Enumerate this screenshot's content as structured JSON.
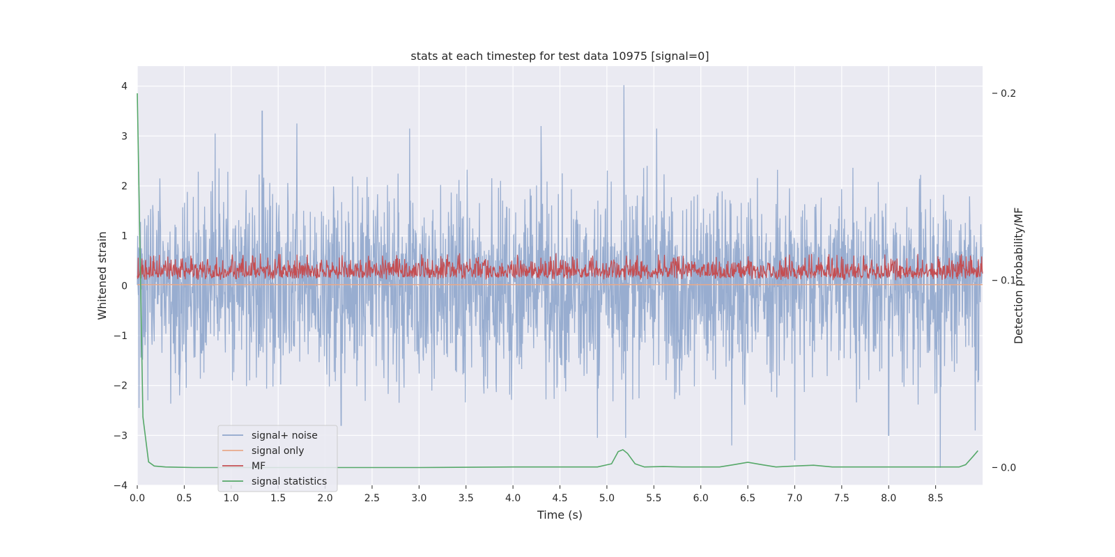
{
  "chart_data": {
    "type": "line",
    "title": "stats at each timestep for test data 10975 [signal=0]",
    "xlabel": "Time (s)",
    "ylabel": "Whitened strain",
    "y2label": "Detection probability/MF",
    "xlim": [
      0.0,
      9.0
    ],
    "ylim": [
      -4.0,
      4.4
    ],
    "y2lim": [
      -0.0095,
      0.2145
    ],
    "x_ticks": [
      0.0,
      0.5,
      1.0,
      1.5,
      2.0,
      2.5,
      3.0,
      3.5,
      4.0,
      4.5,
      5.0,
      5.5,
      6.0,
      6.5,
      7.0,
      7.5,
      8.0,
      8.5
    ],
    "x_tick_labels": [
      "0.0",
      "0.5",
      "1.0",
      "1.5",
      "2.0",
      "2.5",
      "3.0",
      "3.5",
      "4.0",
      "4.5",
      "5.0",
      "5.5",
      "6.0",
      "6.5",
      "7.0",
      "7.5",
      "8.0",
      "8.5"
    ],
    "y_ticks": [
      -4,
      -3,
      -2,
      -1,
      0,
      1,
      2,
      3,
      4
    ],
    "y_tick_labels": [
      "−4",
      "−3",
      "−2",
      "−1",
      "0",
      "1",
      "2",
      "3",
      "4"
    ],
    "y2_ticks": [
      0.0,
      0.1,
      0.2
    ],
    "y2_tick_labels": [
      "0.0",
      "0.1",
      "0.2"
    ],
    "grid": true,
    "legend_position": "lower-left",
    "series": [
      {
        "name": "signal+ noise",
        "axis": "left",
        "color": "#8fa6cc",
        "description": "dense noisy trace, typically within about -2.3 to 2.3 with spikes",
        "spikes": [
          {
            "x": 0.02,
            "y": -2.45
          },
          {
            "x": 0.83,
            "y": 3.05
          },
          {
            "x": 1.33,
            "y": 3.5
          },
          {
            "x": 1.7,
            "y": 3.25
          },
          {
            "x": 2.17,
            "y": -2.8
          },
          {
            "x": 2.9,
            "y": 3.15
          },
          {
            "x": 4.3,
            "y": 3.2
          },
          {
            "x": 4.9,
            "y": -3.05
          },
          {
            "x": 5.18,
            "y": 4.02
          },
          {
            "x": 5.2,
            "y": -3.05
          },
          {
            "x": 5.53,
            "y": 3.15
          },
          {
            "x": 6.33,
            "y": -3.2
          },
          {
            "x": 7.0,
            "y": -3.5
          },
          {
            "x": 8.0,
            "y": -3.0
          },
          {
            "x": 8.55,
            "y": -3.65
          },
          {
            "x": 8.92,
            "y": -2.9
          }
        ]
      },
      {
        "name": "signal only",
        "axis": "left",
        "color": "#e8a98a",
        "x": [
          0.0,
          9.0
        ],
        "values": [
          0.02,
          0.02
        ]
      },
      {
        "name": "MF",
        "axis": "right",
        "color": "#c44e52",
        "description": "noisy matched-filter trace, mostly between 0.1 and 0.115 on right axis"
      },
      {
        "name": "signal statistics",
        "axis": "right",
        "color": "#55a868",
        "x": [
          0.0,
          0.06,
          0.12,
          0.18,
          0.3,
          0.6,
          1.0,
          2.0,
          3.0,
          4.0,
          4.9,
          5.05,
          5.12,
          5.17,
          5.22,
          5.3,
          5.4,
          5.6,
          5.8,
          6.2,
          6.35,
          6.5,
          6.65,
          6.8,
          7.0,
          7.2,
          7.4,
          7.6,
          8.0,
          8.4,
          8.75,
          8.82,
          8.9,
          8.95
        ],
        "values": [
          0.2,
          0.027,
          0.003,
          0.0008,
          0.0003,
          0.0,
          0.0,
          0.0,
          0.0,
          0.0003,
          0.0003,
          0.002,
          0.0085,
          0.0095,
          0.0075,
          0.002,
          0.0003,
          0.0005,
          0.0003,
          0.0003,
          0.0015,
          0.0028,
          0.0015,
          0.0003,
          0.0008,
          0.0012,
          0.0003,
          0.0003,
          0.0003,
          0.0003,
          0.0003,
          0.0015,
          0.006,
          0.009
        ]
      }
    ]
  }
}
